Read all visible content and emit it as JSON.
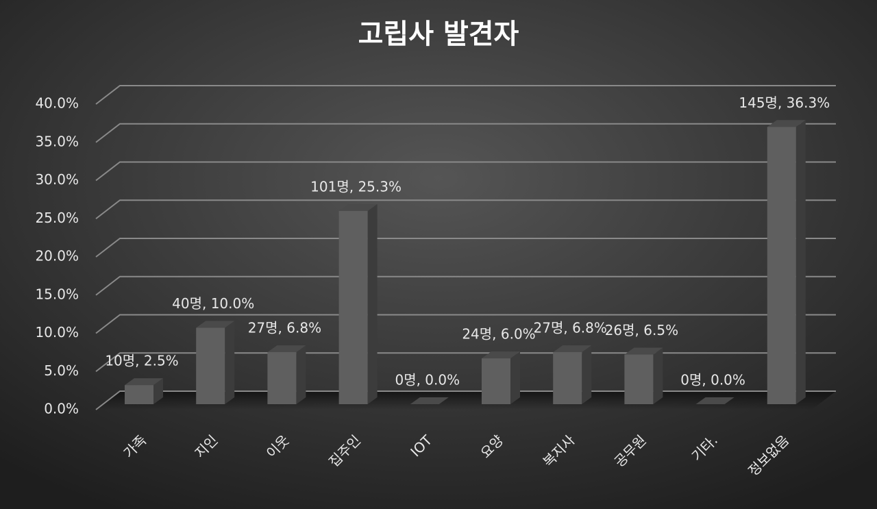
{
  "chart_data": {
    "type": "bar3d",
    "title": "고립사 발견자",
    "categories": [
      "가족",
      "지인",
      "이웃",
      "집주인",
      "IOT",
      "요양",
      "복지사",
      "공무원",
      "기타.",
      "정보없음"
    ],
    "values": [
      2.5,
      10.0,
      6.8,
      25.3,
      0.0,
      6.0,
      6.8,
      6.5,
      0.0,
      36.3
    ],
    "value_labels": [
      "10명, 2.5%",
      "40명, 10.0%",
      "27명, 6.8%",
      "101명, 25.3%",
      "0명, 0.0%",
      "24명, 6.0%",
      "27명, 6.8%",
      "26명, 6.5%",
      "0명, 0.0%",
      "145명, 36.3%"
    ],
    "color": "#5f5f5f",
    "ylim": [
      0,
      40
    ],
    "yticks": [
      {
        "value": 0,
        "label": "0.0%"
      },
      {
        "value": 5,
        "label": "5.0%"
      },
      {
        "value": 10,
        "label": "10.0%"
      },
      {
        "value": 15,
        "label": "15.0%"
      },
      {
        "value": 20,
        "label": "20.0%"
      },
      {
        "value": 25,
        "label": "25.0%"
      },
      {
        "value": 30,
        "label": "30.0%"
      },
      {
        "value": 35,
        "label": "35.0%"
      },
      {
        "value": 40,
        "label": "40.0%"
      }
    ],
    "grid": true
  }
}
